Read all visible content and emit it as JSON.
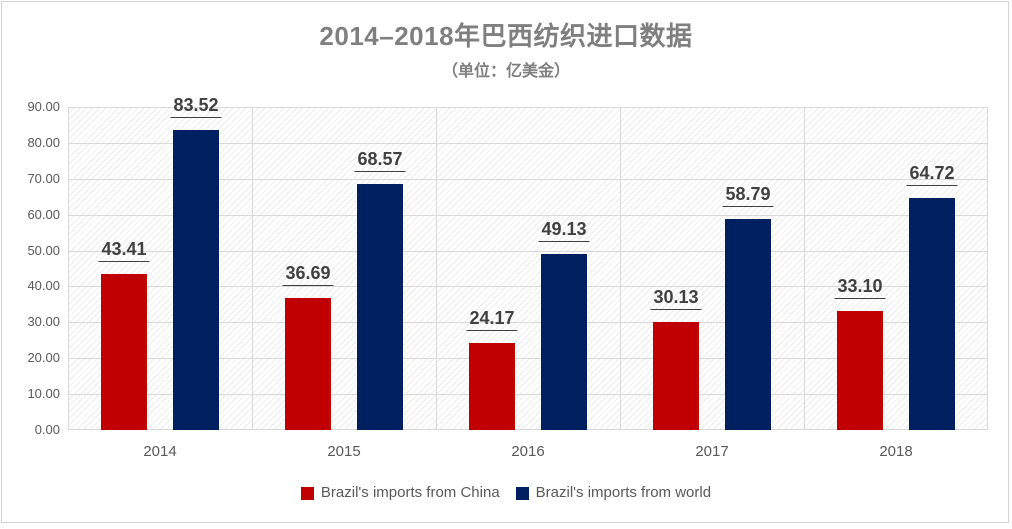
{
  "chart_data": {
    "type": "bar",
    "title": "2014–2018年巴西纺织进口数据",
    "subtitle": "（单位：亿美金）",
    "categories": [
      "2014",
      "2015",
      "2016",
      "2017",
      "2018"
    ],
    "series": [
      {
        "name": "Brazil's imports from China",
        "color": "#c00000",
        "values": [
          43.41,
          36.69,
          24.17,
          30.13,
          33.1
        ]
      },
      {
        "name": "Brazil's imports from world",
        "color": "#002060",
        "values": [
          83.52,
          68.57,
          49.13,
          58.79,
          64.72
        ]
      }
    ],
    "ylim": [
      0,
      90
    ],
    "y_tick_step": 10,
    "y_ticks": [
      "90.00",
      "80.00",
      "70.00",
      "60.00",
      "50.00",
      "40.00",
      "30.00",
      "20.00",
      "10.00",
      "0.00"
    ],
    "value_decimals": 2,
    "grid": true,
    "plot_background": "diagonal-hatch",
    "legend_position": "bottom",
    "data_label_style": "bold-underline"
  },
  "colors": {
    "title_text": "#7f7f7f",
    "axis_text": "#595959",
    "data_label_text": "#404040",
    "gridline": "#d9d9d9",
    "frame_border": "#d4d4d4",
    "background": "#ffffff",
    "series_china": "#c00000",
    "series_world": "#002060"
  }
}
